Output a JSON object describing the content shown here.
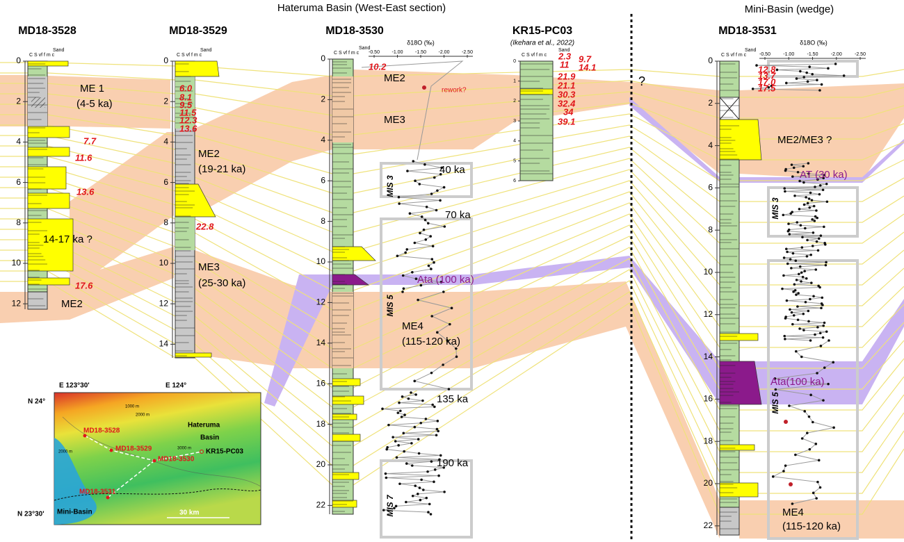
{
  "header": {
    "left_title": "Hateruma Basin (West-East section)",
    "right_title": "Mini-Basin (wedge)"
  },
  "grain_size": {
    "sand": "Sand",
    "scale": "C S vf f m c"
  },
  "isotope_axis": {
    "label": "δ18O (‰)",
    "ticks": [
      "-0.50",
      "-1.00",
      "-1.50",
      "-2.00",
      "-2.50"
    ]
  },
  "uncertain": "?",
  "columns": [
    {
      "name": "MD18-3528",
      "depth_ticks": [
        0,
        2,
        4,
        6,
        8,
        10,
        12
      ],
      "ages": [
        "7.7",
        "11.6",
        "13.6",
        "17.6"
      ],
      "units": [
        "ME 1",
        "(4-5 ka)",
        "14-17 ka ?",
        "ME2"
      ]
    },
    {
      "name": "MD18-3529",
      "depth_ticks": [
        0,
        2,
        4,
        6,
        8,
        10,
        12,
        14
      ],
      "ages": [
        "6.0",
        "8.1",
        "9.5",
        "11.5",
        "12.3",
        "13.6",
        "22.8"
      ],
      "units": [
        "ME2",
        "(19-21 ka)",
        "ME3",
        "(25-30 ka)"
      ]
    },
    {
      "name": "MD18-3530",
      "depth_ticks": [
        0,
        2,
        4,
        6,
        8,
        10,
        12,
        14,
        16,
        18,
        20,
        22
      ],
      "ages": [
        "10.2"
      ],
      "units": [
        "ME2",
        "rework?",
        "ME3",
        "40 ka",
        "MIS 3",
        "70 ka",
        "Ata (100 ka)",
        "MIS 5",
        "ME4",
        "(115-120 ka)",
        "135 ka",
        "190 ka",
        "MIS 7"
      ]
    },
    {
      "name": "KR15-PC03",
      "subtitle": "(Ikehara et al., 2022)",
      "depth_ticks": [
        0,
        1,
        2,
        3,
        4,
        5,
        6
      ],
      "ages": [
        "2.3",
        "9.7",
        "11",
        "14.1",
        "21.9",
        "21.1",
        "30.3",
        "32.4",
        "34",
        "39.1"
      ]
    },
    {
      "name": "MD18-3531",
      "depth_ticks": [
        0,
        2,
        4,
        6,
        8,
        10,
        12,
        14,
        16,
        18,
        20,
        22
      ],
      "ages": [
        "12.8",
        "13.7",
        "17.0",
        "17.5"
      ],
      "units": [
        "ME2/ME3 ?",
        "AT (30 ka)",
        "MIS 3",
        "Ata(100 ka)",
        "MIS 5",
        "ME4",
        "(115-120 ka)"
      ]
    }
  ],
  "map": {
    "lon_left": "E 123°30'",
    "lon_right": "E 124°",
    "lat_top": "N 24°",
    "lat_bottom": "N 23°30'",
    "sites": [
      "MD18-3528",
      "MD18-3529",
      "MD18-3530",
      "KR15-PC03",
      "MD18-3531"
    ],
    "basin_1": "Hateruma",
    "basin_2": "Basin",
    "basin_3": "Mini-Basin",
    "scale": "30 km",
    "contours": [
      "1000 m",
      "2000 m",
      "3000 m"
    ]
  }
}
